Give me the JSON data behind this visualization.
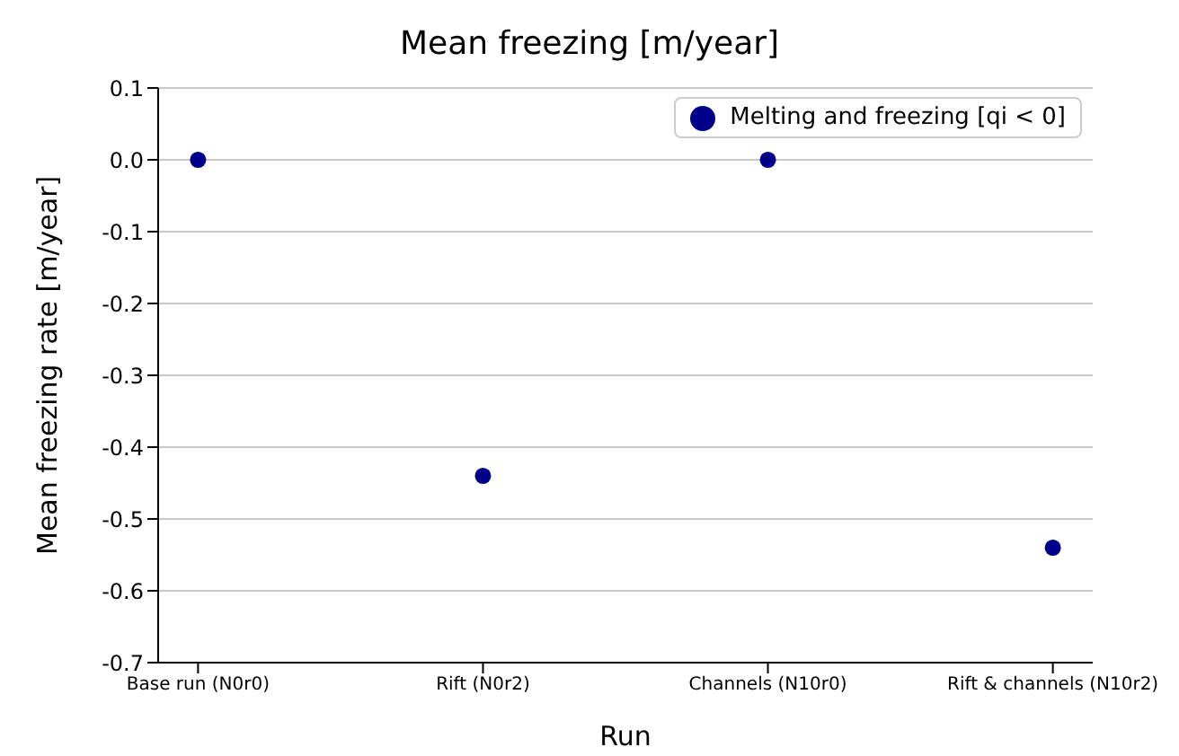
{
  "chart_data": {
    "type": "scatter",
    "title": "Mean freezing [m/year]",
    "xlabel": "Run",
    "ylabel": "Mean freezing rate [m/year]",
    "categories": [
      "Base run (N0r0)",
      "Rift (N0r2)",
      "Channels (N10r0)",
      "Rift & channels (N10r2)"
    ],
    "series": [
      {
        "name": "Melting and freezing [qi < 0]",
        "color": "#00008b",
        "values": [
          0.0,
          -0.44,
          0.0,
          -0.54
        ]
      }
    ],
    "ylim": [
      -0.7,
      0.1
    ],
    "yticks": [
      {
        "value": -0.7,
        "label": "-0.7"
      },
      {
        "value": -0.6,
        "label": "-0.6"
      },
      {
        "value": -0.5,
        "label": "-0.5"
      },
      {
        "value": -0.4,
        "label": "-0.4"
      },
      {
        "value": -0.3,
        "label": "-0.3"
      },
      {
        "value": -0.2,
        "label": "-0.2"
      },
      {
        "value": -0.1,
        "label": "-0.1"
      },
      {
        "value": 0,
        "label": "0.0"
      },
      {
        "value": 0.1,
        "label": "0.1"
      }
    ],
    "grid": "y",
    "legend": "top right",
    "marker": "circle"
  }
}
